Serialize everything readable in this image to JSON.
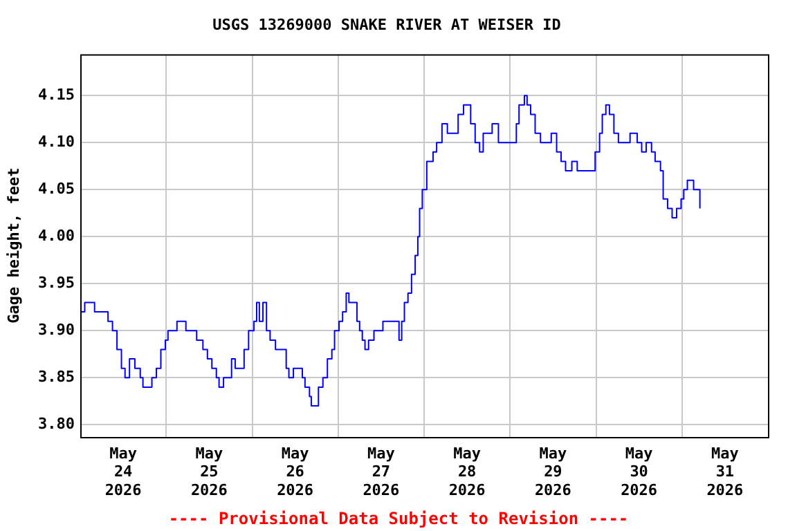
{
  "chart_data": {
    "type": "step",
    "title": "USGS 13269000 SNAKE RIVER AT WEISER ID",
    "ylabel": "Gage height, feet",
    "annotations": [
      "---- Provisional Data Subject to Revision ----"
    ],
    "x": [
      "2026-05-24T00:00",
      "2026-05-24T01:15",
      "2026-05-24T03:15",
      "2026-05-24T04:00",
      "2026-05-24T06:30",
      "2026-05-24T07:45",
      "2026-05-24T09:00",
      "2026-05-24T10:15",
      "2026-05-24T11:30",
      "2026-05-24T12:30",
      "2026-05-24T13:45",
      "2026-05-24T15:15",
      "2026-05-24T16:45",
      "2026-05-24T17:30",
      "2026-05-24T18:45",
      "2026-05-24T20:00",
      "2026-05-24T21:15",
      "2026-05-24T22:30",
      "2026-05-24T23:45",
      "2026-05-25T00:30",
      "2026-05-25T03:00",
      "2026-05-25T05:30",
      "2026-05-25T07:00",
      "2026-05-25T08:30",
      "2026-05-25T10:15",
      "2026-05-25T11:30",
      "2026-05-25T12:45",
      "2026-05-25T14:00",
      "2026-05-25T14:45",
      "2026-05-25T16:00",
      "2026-05-25T17:15",
      "2026-05-25T18:15",
      "2026-05-25T19:15",
      "2026-05-25T20:45",
      "2026-05-25T21:45",
      "2026-05-25T23:00",
      "2026-05-26T00:30",
      "2026-05-26T01:15",
      "2026-05-26T02:00",
      "2026-05-26T03:00",
      "2026-05-26T04:00",
      "2026-05-26T05:00",
      "2026-05-26T06:30",
      "2026-05-26T07:45",
      "2026-05-26T09:30",
      "2026-05-26T10:15",
      "2026-05-26T11:30",
      "2026-05-26T12:30",
      "2026-05-26T14:00",
      "2026-05-26T14:45",
      "2026-05-26T16:00",
      "2026-05-26T16:30",
      "2026-05-26T17:30",
      "2026-05-26T18:30",
      "2026-05-26T19:45",
      "2026-05-26T21:00",
      "2026-05-26T22:15",
      "2026-05-26T23:00",
      "2026-05-27T00:15",
      "2026-05-27T01:15",
      "2026-05-27T02:15",
      "2026-05-27T03:00",
      "2026-05-27T04:00",
      "2026-05-27T05:15",
      "2026-05-27T06:00",
      "2026-05-27T06:45",
      "2026-05-27T07:30",
      "2026-05-27T08:30",
      "2026-05-27T10:00",
      "2026-05-27T11:15",
      "2026-05-27T12:30",
      "2026-05-27T14:30",
      "2026-05-27T15:45",
      "2026-05-27T17:00",
      "2026-05-27T17:45",
      "2026-05-27T18:30",
      "2026-05-27T19:30",
      "2026-05-27T20:30",
      "2026-05-27T21:30",
      "2026-05-27T22:15",
      "2026-05-27T22:45",
      "2026-05-27T23:30",
      "2026-05-28T00:45",
      "2026-05-28T02:30",
      "2026-05-28T03:30",
      "2026-05-28T05:00",
      "2026-05-28T06:30",
      "2026-05-28T08:00",
      "2026-05-28T09:30",
      "2026-05-28T11:00",
      "2026-05-28T12:30",
      "2026-05-28T13:00",
      "2026-05-28T14:15",
      "2026-05-28T15:30",
      "2026-05-28T16:30",
      "2026-05-28T17:30",
      "2026-05-28T19:00",
      "2026-05-28T20:45",
      "2026-05-28T22:45",
      "2026-05-29T00:00",
      "2026-05-29T01:45",
      "2026-05-29T02:30",
      "2026-05-29T04:00",
      "2026-05-29T04:45",
      "2026-05-29T05:45",
      "2026-05-29T07:00",
      "2026-05-29T08:30",
      "2026-05-29T10:00",
      "2026-05-29T11:30",
      "2026-05-29T13:00",
      "2026-05-29T14:15",
      "2026-05-29T15:30",
      "2026-05-29T17:15",
      "2026-05-29T18:45",
      "2026-05-29T20:15",
      "2026-05-29T22:30",
      "2026-05-29T23:45",
      "2026-05-30T01:00",
      "2026-05-30T01:45",
      "2026-05-30T02:45",
      "2026-05-30T03:45",
      "2026-05-30T05:00",
      "2026-05-30T06:15",
      "2026-05-30T07:30",
      "2026-05-30T09:30",
      "2026-05-30T11:30",
      "2026-05-30T12:45",
      "2026-05-30T14:00",
      "2026-05-30T15:30",
      "2026-05-30T16:30",
      "2026-05-30T18:00",
      "2026-05-30T18:45",
      "2026-05-30T20:00",
      "2026-05-30T21:15",
      "2026-05-30T22:30",
      "2026-05-30T23:45",
      "2026-05-31T00:30",
      "2026-05-31T01:30",
      "2026-05-31T02:15",
      "2026-05-31T03:15",
      "2026-05-31T04:15",
      "2026-05-31T05:00"
    ],
    "series": [
      {
        "color": "#0000ff",
        "values": [
          3.92,
          3.93,
          3.93,
          3.92,
          3.92,
          3.91,
          3.9,
          3.88,
          3.86,
          3.85,
          3.87,
          3.86,
          3.85,
          3.84,
          3.84,
          3.85,
          3.86,
          3.88,
          3.89,
          3.9,
          3.91,
          3.9,
          3.9,
          3.89,
          3.88,
          3.87,
          3.86,
          3.85,
          3.84,
          3.85,
          3.85,
          3.87,
          3.86,
          3.86,
          3.88,
          3.9,
          3.91,
          3.93,
          3.91,
          3.93,
          3.9,
          3.89,
          3.88,
          3.88,
          3.86,
          3.85,
          3.86,
          3.86,
          3.85,
          3.84,
          3.83,
          3.82,
          3.82,
          3.84,
          3.85,
          3.87,
          3.88,
          3.9,
          3.91,
          3.92,
          3.94,
          3.93,
          3.93,
          3.91,
          3.9,
          3.89,
          3.88,
          3.89,
          3.9,
          3.9,
          3.91,
          3.91,
          3.91,
          3.89,
          3.91,
          3.93,
          3.94,
          3.96,
          3.98,
          4.0,
          4.03,
          4.05,
          4.08,
          4.09,
          4.1,
          4.12,
          4.11,
          4.11,
          4.13,
          4.14,
          4.14,
          4.12,
          4.1,
          4.09,
          4.11,
          4.11,
          4.12,
          4.1,
          4.1,
          4.1,
          4.12,
          4.14,
          4.15,
          4.14,
          4.13,
          4.11,
          4.1,
          4.1,
          4.11,
          4.09,
          4.08,
          4.07,
          4.08,
          4.07,
          4.07,
          4.07,
          4.09,
          4.11,
          4.13,
          4.14,
          4.13,
          4.11,
          4.1,
          4.1,
          4.11,
          4.1,
          4.09,
          4.1,
          4.09,
          4.08,
          4.07,
          4.04,
          4.03,
          4.02,
          4.03,
          4.04,
          4.05,
          4.06,
          4.06,
          4.05,
          4.05,
          4.03
        ]
      }
    ],
    "xlim": [
      "2026-05-24T00:00",
      "2026-06-01T00:00"
    ],
    "xticks": [
      {
        "value": "2026-05-24T12:00",
        "label": "May 24 2026"
      },
      {
        "value": "2026-05-25T00:00",
        "label": null
      },
      {
        "value": "2026-05-25T12:00",
        "label": "May 25 2026"
      },
      {
        "value": "2026-05-26T00:00",
        "label": null
      },
      {
        "value": "2026-05-26T12:00",
        "label": "May 26 2026"
      },
      {
        "value": "2026-05-27T00:00",
        "label": null
      },
      {
        "value": "2026-05-27T12:00",
        "label": "May 27 2026"
      },
      {
        "value": "2026-05-28T00:00",
        "label": null
      },
      {
        "value": "2026-05-28T12:00",
        "label": "May 28 2026"
      },
      {
        "value": "2026-05-29T00:00",
        "label": null
      },
      {
        "value": "2026-05-29T12:00",
        "label": "May 29 2026"
      },
      {
        "value": "2026-05-30T00:00",
        "label": null
      },
      {
        "value": "2026-05-30T12:00",
        "label": "May 30 2026"
      },
      {
        "value": "2026-05-31T00:00",
        "label": null
      },
      {
        "value": "2026-05-31T12:00",
        "label": "May 31 2026"
      }
    ],
    "ylim": [
      3.787,
      4.194
    ],
    "yticks": [
      {
        "value": 3.8,
        "label": "3.80"
      },
      3.85,
      {
        "value": 3.9,
        "label": "3.90"
      },
      3.95,
      {
        "value": 4.0,
        "label": "4.00"
      },
      4.05,
      {
        "value": 4.1,
        "label": "4.10"
      },
      4.15
    ],
    "grid": true,
    "marker": "none",
    "line_style": "solid"
  }
}
